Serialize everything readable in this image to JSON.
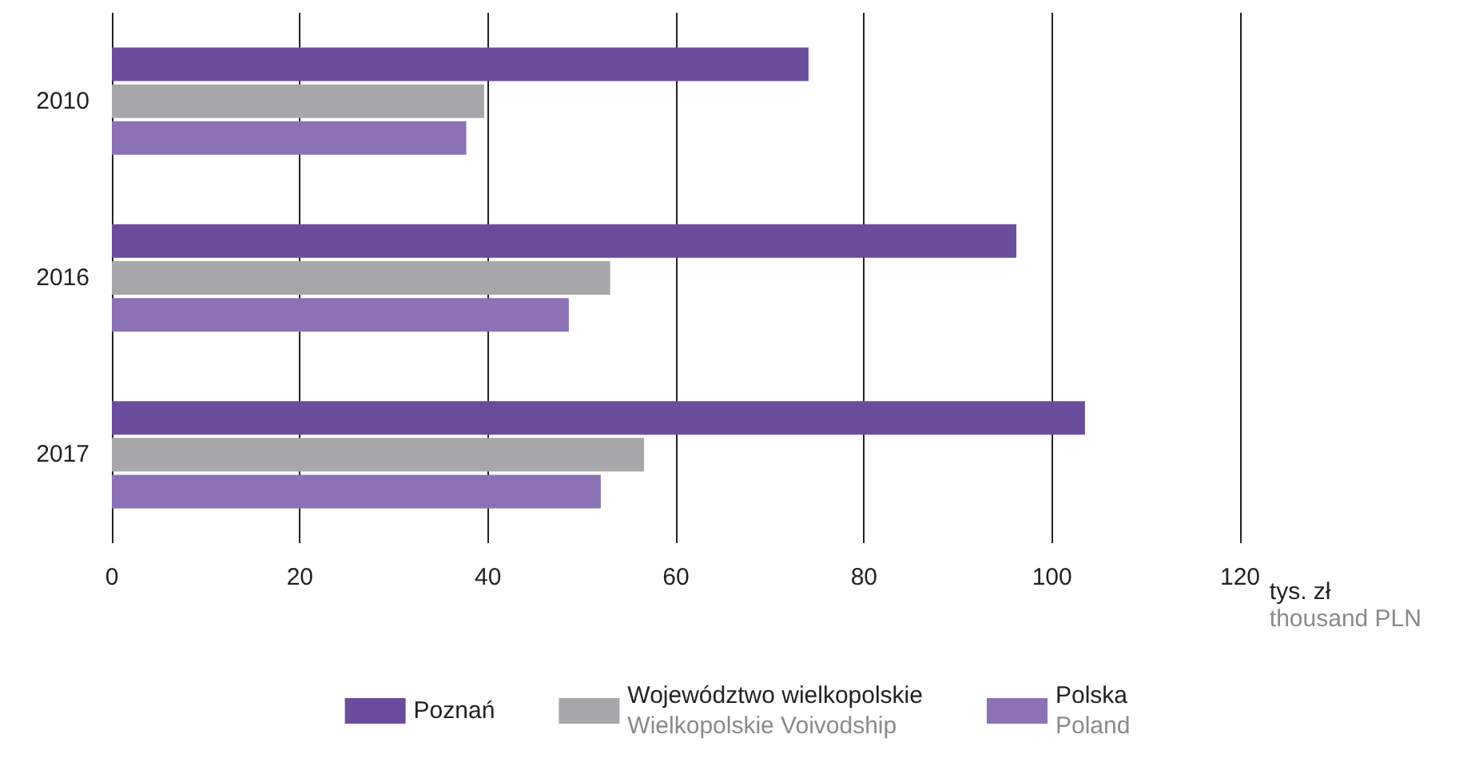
{
  "chart_data": {
    "type": "bar",
    "orientation": "horizontal",
    "categories": [
      "2010",
      "2016",
      "2017"
    ],
    "series": [
      {
        "name": "Poznań",
        "color": "#6a4c9c",
        "values": [
          74.1,
          96.2,
          103.5
        ]
      },
      {
        "name": "Województwo wielkopolskie\nWielkopolskie Voivodship",
        "color": "#a7a7a9",
        "values": [
          39.6,
          53.0,
          56.6
        ]
      },
      {
        "name": "Polska\nPoland",
        "color": "#8a72b5",
        "values": [
          37.7,
          48.6,
          52.0
        ]
      }
    ],
    "xlabel": "tys. zł\nthousand PLN",
    "xlim": [
      0,
      120
    ],
    "xticks": [
      0,
      20,
      40,
      60,
      80,
      100,
      120
    ],
    "grid": "x",
    "legend": "bottom"
  }
}
